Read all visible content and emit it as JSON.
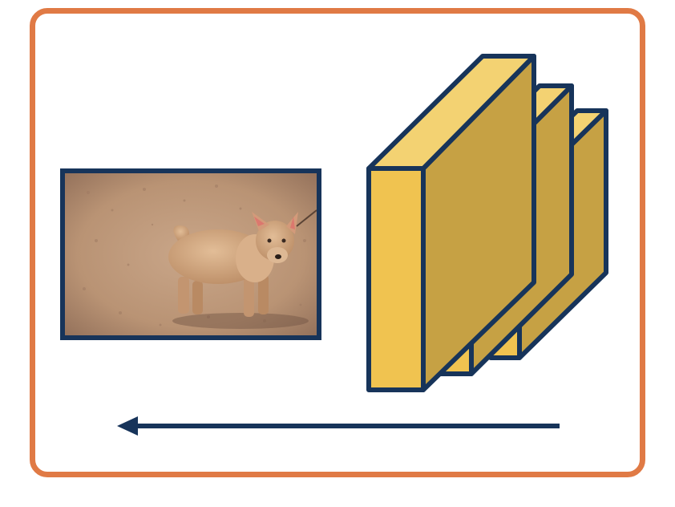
{
  "colors": {
    "frame_border": "#E07A45",
    "block_outline": "#17345A",
    "block_front": "#F0C350",
    "block_top": "#F3D272",
    "block_side": "#C6A144",
    "arrow": "#17345A",
    "photo_ground": "#B99374",
    "dog_fur": "#CFA27A"
  },
  "icons": {
    "photo": "dog-photo",
    "blocks": "feature-map-stack",
    "arrow": "left-arrow"
  }
}
